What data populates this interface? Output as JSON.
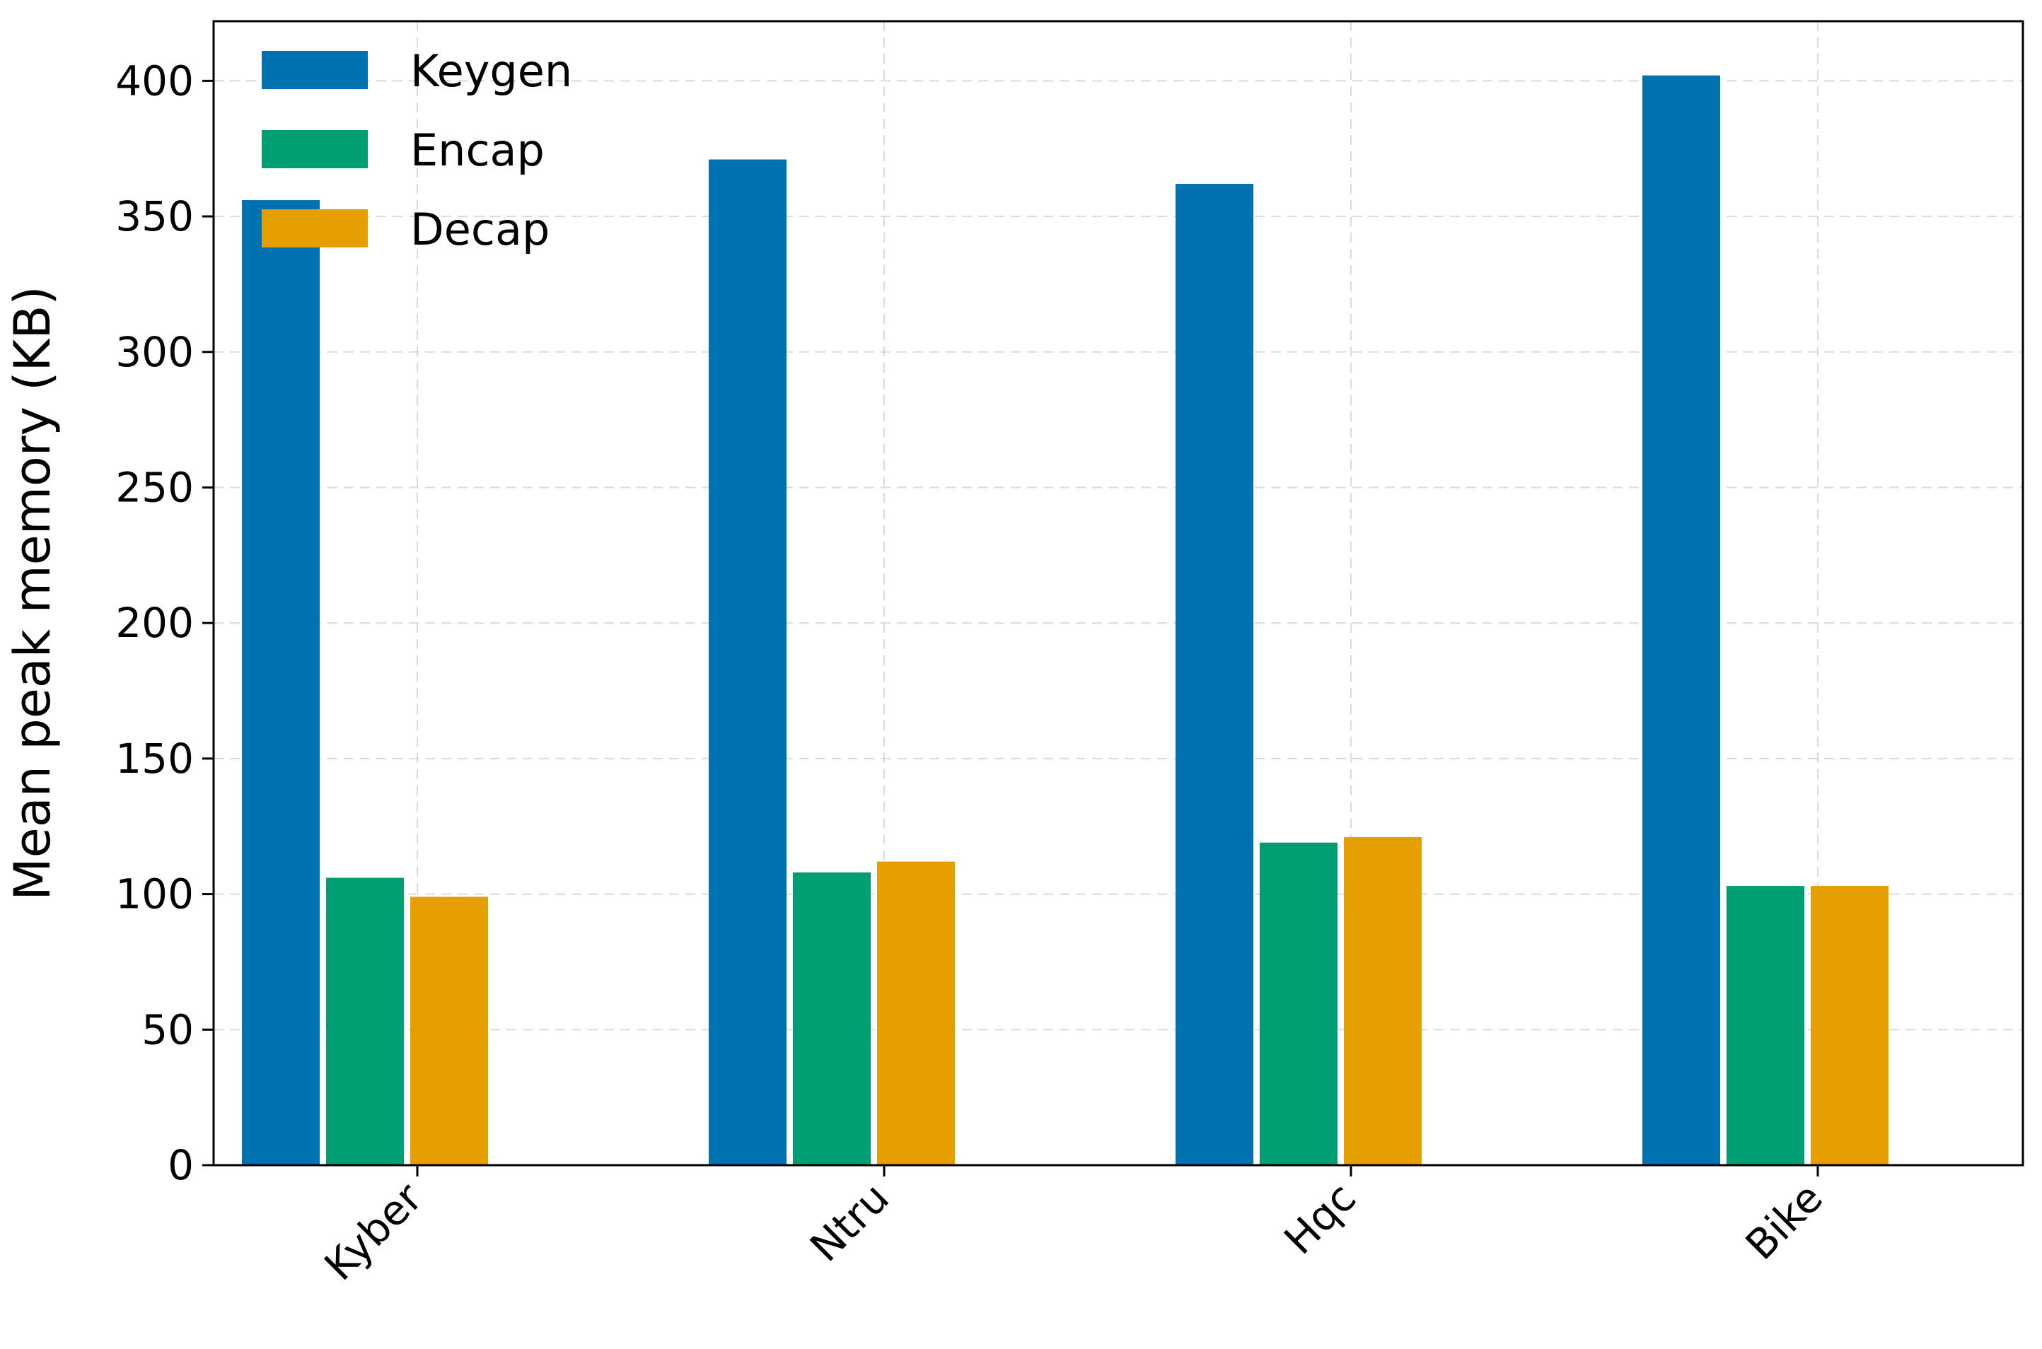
{
  "chart_data": {
    "type": "bar",
    "title": "",
    "xlabel": "",
    "ylabel": "Mean peak memory (KB)",
    "categories": [
      "Kyber",
      "Ntru",
      "Hqc",
      "Bike"
    ],
    "series": [
      {
        "name": "Keygen",
        "color": "#0072B2",
        "values": [
          356,
          371,
          362,
          402
        ]
      },
      {
        "name": "Encap",
        "color": "#009E73",
        "values": [
          106,
          108,
          119,
          103
        ]
      },
      {
        "name": "Decap",
        "color": "#E69F00",
        "values": [
          99,
          112,
          121,
          103
        ]
      }
    ],
    "ylim": [
      0,
      422
    ],
    "yticks": [
      0,
      50,
      100,
      150,
      200,
      250,
      300,
      350,
      400
    ],
    "grid": true,
    "legend_position": "top-left"
  }
}
